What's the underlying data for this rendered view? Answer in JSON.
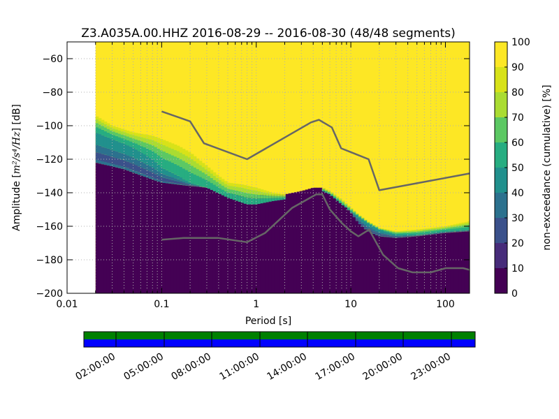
{
  "chart_data": {
    "type": "heatmap",
    "title": "Z3.A035A.00.HHZ   2016-08-29 -- 2016-08-30  (48/48 segments)",
    "xlabel": "Period [s]",
    "ylabel": {
      "prefix": "Amplitude [",
      "math": "m²/s⁴/Hz",
      "suffix": "] [dB]"
    },
    "xscale": "log",
    "xlim": [
      0.01,
      180
    ],
    "ylim": [
      -200,
      -50
    ],
    "x_tick_values": [
      0.01,
      0.1,
      1,
      10,
      100
    ],
    "x_tick_labels": [
      "0.01",
      "0.1",
      "1",
      "10",
      "100"
    ],
    "y_tick_values": [
      -60,
      -80,
      -100,
      -120,
      -140,
      -160,
      -180,
      -200
    ],
    "y_tick_labels": [
      "−60",
      "−80",
      "−100",
      "−120",
      "−140",
      "−160",
      "−180",
      "−200"
    ],
    "grid": true,
    "colormap": "viridis",
    "colorbar": {
      "label": "non-exceedance (cumulative) [%]",
      "range": [
        0,
        100
      ],
      "tick_values": [
        0,
        10,
        20,
        30,
        40,
        50,
        60,
        70,
        80,
        90,
        100
      ],
      "tick_labels": [
        "0",
        "10",
        "20",
        "30",
        "40",
        "50",
        "60",
        "70",
        "80",
        "90",
        "100"
      ],
      "colors": [
        "#440154",
        "#472c7a",
        "#3b518b",
        "#2c718e",
        "#21908d",
        "#27ad81",
        "#5cc863",
        "#aadc32",
        "#d8e219",
        "#fde725"
      ]
    },
    "data_period_range": [
      0.02,
      180
    ],
    "low_edge": {
      "period": [
        0.02,
        0.04,
        0.07,
        0.1,
        0.2,
        0.3,
        0.5,
        0.8,
        1.2,
        2,
        3,
        4,
        5,
        6,
        8,
        10,
        12,
        15,
        20,
        30,
        50,
        100,
        180
      ],
      "db": [
        -122,
        -126,
        -131,
        -134,
        -136,
        -137,
        -140,
        -142,
        -141,
        -141,
        -139,
        -137,
        -137,
        -140,
        -146,
        -152,
        -158,
        -163,
        -166,
        -167,
        -166,
        -164,
        -163
      ]
    },
    "high_edge": {
      "period": [
        0.02,
        0.03,
        0.05,
        0.08,
        0.1,
        0.15,
        0.2,
        0.3,
        0.4,
        0.5,
        0.7,
        1,
        1.5,
        2,
        3,
        4,
        5,
        6,
        8,
        10,
        12,
        15,
        20,
        30,
        50,
        100,
        180
      ],
      "db": [
        -94,
        -100,
        -104,
        -106,
        -108,
        -112,
        -116,
        -124,
        -130,
        -134,
        -135,
        -137,
        -140,
        -141,
        -140,
        -138,
        -137,
        -139,
        -144,
        -149,
        -153,
        -157,
        -161,
        -163,
        -162,
        -160,
        -157
      ]
    },
    "spread_edge": {
      "period": [
        0.02,
        0.03,
        0.05,
        0.08,
        0.1,
        0.15,
        0.2,
        0.3,
        0.5,
        0.8,
        1,
        1.5,
        2,
        3,
        4,
        5,
        6,
        8,
        10,
        15,
        20,
        30,
        50,
        100,
        180
      ],
      "db": [
        -104,
        -108,
        -113,
        -120,
        -125,
        -130,
        -134,
        -137,
        -143,
        -147,
        -147,
        -145,
        -144,
        -143,
        -141,
        -139,
        -141,
        -147,
        -151,
        -158,
        -162,
        -165,
        -165,
        -163,
        -162
      ]
    },
    "series": [
      {
        "name": "",
        "color": "#666666",
        "x": [
          0.1,
          0.2,
          0.28,
          0.8,
          3.8,
          4.6,
          6.3,
          7.9,
          15.4,
          20,
          180
        ],
        "y": [
          -91.5,
          -97.4,
          -110.5,
          -120.0,
          -98.0,
          -96.5,
          -101.0,
          -113.5,
          -120.0,
          -138.5,
          -128.5
        ]
      },
      {
        "name": "",
        "color": "#666666",
        "x": [
          0.1,
          0.17,
          0.4,
          0.8,
          1.24,
          2.4,
          4.3,
          5,
          6,
          8,
          10,
          12,
          15.6,
          21.9,
          31.6,
          45,
          70,
          101,
          154,
          180
        ],
        "y": [
          -168,
          -167,
          -167,
          -169.5,
          -164,
          -149,
          -141,
          -141,
          -150,
          -158,
          -163,
          -166,
          -162,
          -177,
          -185,
          -187.5,
          -187.5,
          -185,
          -185,
          -186
        ]
      }
    ]
  },
  "timeline": {
    "tick_labels": [
      "02:00:00",
      "05:00:00",
      "08:00:00",
      "11:00:00",
      "14:00:00",
      "17:00:00",
      "20:00:00",
      "23:00:00"
    ],
    "top_color": "#008000",
    "bottom_color": "#0000ff"
  }
}
